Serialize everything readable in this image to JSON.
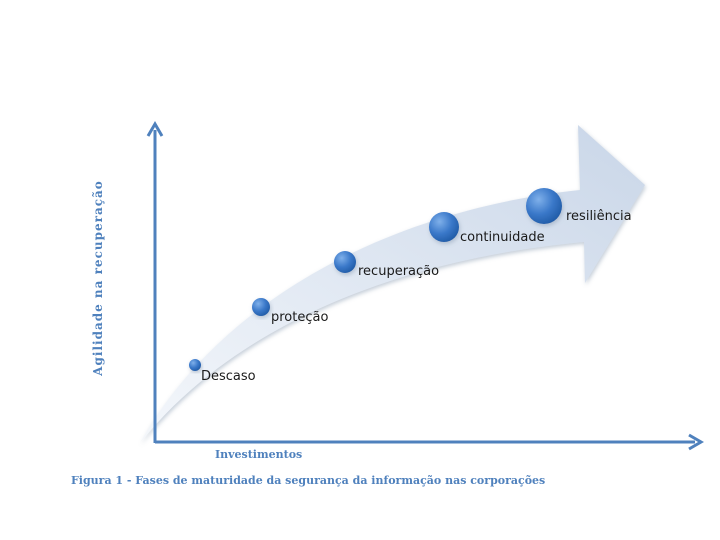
{
  "diagram": {
    "y_axis_label": "Agilidade na recuperação",
    "x_axis_label": "Investimentos",
    "caption": "Figura 1 - Fases de maturidade da segurança da informação nas corporações",
    "stages": [
      {
        "label": "Descaso"
      },
      {
        "label": "proteção"
      },
      {
        "label": "recuperação"
      },
      {
        "label": "continuidade"
      },
      {
        "label": "resiliência"
      }
    ],
    "colors": {
      "axis": "#4f81bd",
      "arrow_fill": "#dbe4f0",
      "bubble": "#3a78c9",
      "text": "#1a1a1a"
    }
  }
}
